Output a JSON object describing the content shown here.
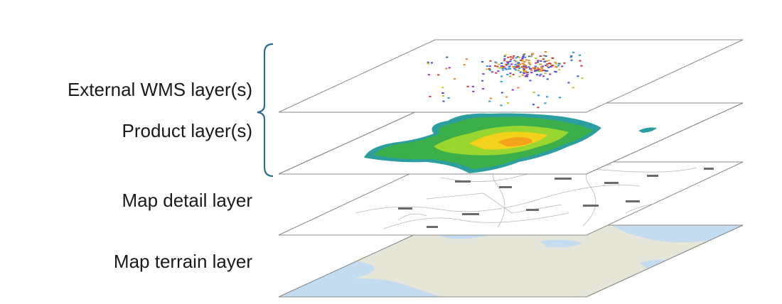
{
  "layers": [
    {
      "id": "wms",
      "label": "External WMS layer(s)"
    },
    {
      "id": "product",
      "label": "Product layer(s)"
    },
    {
      "id": "detail",
      "label": "Map detail layer"
    },
    {
      "id": "terrain",
      "label": "Map terrain layer"
    }
  ],
  "colors": {
    "plane_stroke": "#8a8a8a",
    "bracket": "#2a6f8f",
    "terrain_land": "#e6e6d8",
    "terrain_water": "#c3dcef",
    "precip_light": "#3cae4a",
    "precip_mid": "#9ad630",
    "precip_high": "#f2d21a",
    "precip_peak": "#f5a21c",
    "precip_edge": "#2b9ea0"
  },
  "icons": {
    "group_bracket": "curly-brace"
  }
}
